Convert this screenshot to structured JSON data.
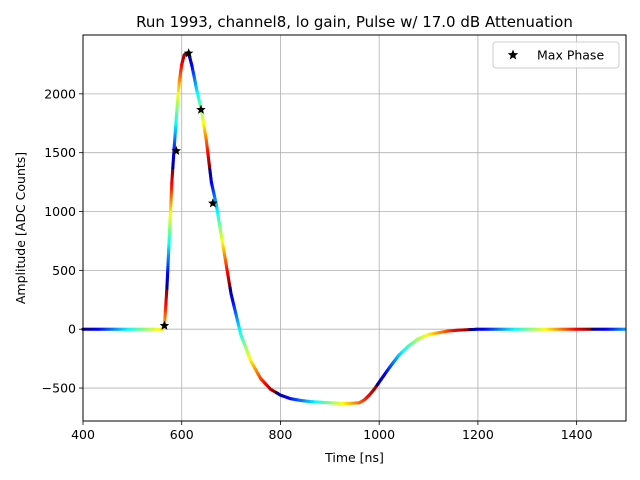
{
  "chart_data": {
    "type": "scatter",
    "title": "Run 1993, channel8, lo gain, Pulse w/ 17.0 dB Attenuation",
    "xlabel": "Time [ns]",
    "ylabel": "Amplitude [ADC Counts]",
    "xlim": [
      400,
      1500
    ],
    "ylim": [
      -780,
      2500
    ],
    "xticks": [
      400,
      600,
      800,
      1000,
      1200,
      1400
    ],
    "xtick_labels": [
      "400",
      "600",
      "800",
      "1000",
      "1200",
      "1400"
    ],
    "yticks": [
      -500,
      0,
      500,
      1000,
      1500,
      2000
    ],
    "ytick_labels": [
      "−500",
      "0",
      "500",
      "1000",
      "1500",
      "2000"
    ],
    "grid": true,
    "legend": {
      "position": "top-right",
      "entries": [
        "Max Phase"
      ]
    },
    "colormap": "jet",
    "series": [
      {
        "name": "",
        "kind": "waveform",
        "x": [
          400,
          560,
          565,
          570,
          575,
          580,
          585,
          590,
          595,
          600,
          605,
          610,
          615,
          620,
          625,
          630,
          640,
          650,
          660,
          670,
          680,
          690,
          700,
          720,
          740,
          760,
          780,
          800,
          820,
          840,
          860,
          880,
          900,
          920,
          940,
          960,
          970,
          980,
          990,
          1000,
          1020,
          1040,
          1060,
          1080,
          1100,
          1120,
          1140,
          1160,
          1200,
          1300,
          1400,
          1500
        ],
        "y": [
          0,
          0,
          30,
          350,
          800,
          1250,
          1560,
          1850,
          2100,
          2250,
          2330,
          2345,
          2330,
          2250,
          2150,
          2040,
          1860,
          1600,
          1250,
          1060,
          800,
          550,
          300,
          -50,
          -270,
          -420,
          -510,
          -560,
          -590,
          -605,
          -615,
          -620,
          -625,
          -630,
          -630,
          -625,
          -600,
          -560,
          -510,
          -450,
          -330,
          -220,
          -140,
          -80,
          -45,
          -30,
          -15,
          -8,
          0,
          0,
          0,
          0
        ]
      },
      {
        "name": "Max Phase",
        "kind": "marker",
        "x": [
          565,
          589,
          614,
          639,
          663
        ],
        "y": [
          30,
          1515,
          2345,
          1865,
          1070
        ]
      }
    ]
  }
}
